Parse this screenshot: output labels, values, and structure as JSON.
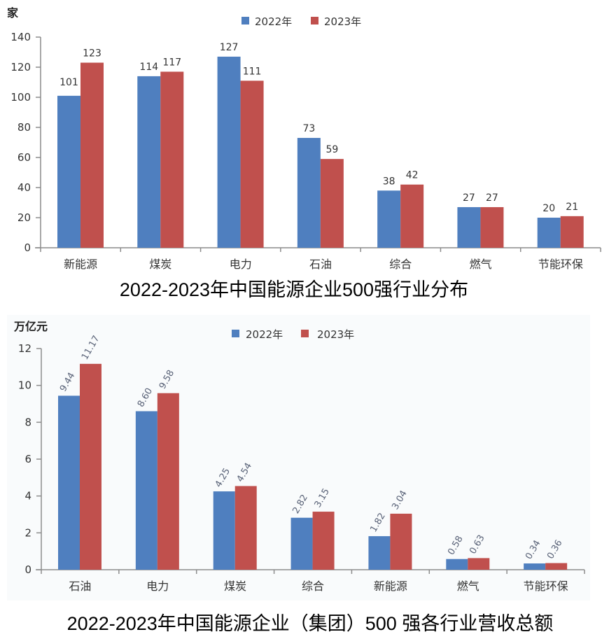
{
  "colors": {
    "series_2022": "#4f7fbf",
    "series_2023": "#c0504d",
    "axis": "#8c8c8c",
    "panel2_bg": "#f9fbfc"
  },
  "chart_data": [
    {
      "type": "bar",
      "title": "2022-2023年中国能源企业500强行业分布",
      "ylabel": "家",
      "xlabel": "",
      "ylim": [
        0,
        140
      ],
      "yticks": [
        0,
        20,
        40,
        60,
        80,
        100,
        120,
        140
      ],
      "ytick_labels": [
        "0",
        "20",
        "40",
        "60",
        "80",
        "100",
        "120",
        "140"
      ],
      "legend_position": "top-center",
      "grid": false,
      "categories": [
        "新能源",
        "煤炭",
        "电力",
        "石油",
        "综合",
        "燃气",
        "节能环保"
      ],
      "series": [
        {
          "name": "2022年",
          "values": [
            101,
            114,
            127,
            73,
            38,
            27,
            20
          ],
          "labels": [
            "101",
            "114",
            "127",
            "73",
            "38",
            "27",
            "20"
          ]
        },
        {
          "name": "2023年",
          "values": [
            123,
            117,
            111,
            59,
            42,
            27,
            21
          ],
          "labels": [
            "123",
            "117",
            "111",
            "59",
            "42",
            "27",
            "21"
          ]
        }
      ]
    },
    {
      "type": "bar",
      "title": "2022-2023年中国能源企业（集团）500 强各行业营收总额",
      "ylabel": "万亿元",
      "xlabel": "",
      "ylim": [
        0,
        12
      ],
      "yticks": [
        0,
        2,
        4,
        6,
        8,
        10,
        12
      ],
      "ytick_labels": [
        "0",
        "2",
        "4",
        "6",
        "8",
        "10",
        "12"
      ],
      "legend_position": "top-center",
      "grid": false,
      "categories": [
        "石油",
        "电力",
        "煤炭",
        "综合",
        "新能源",
        "燃气",
        "节能环保"
      ],
      "series": [
        {
          "name": "2022年",
          "values": [
            9.44,
            8.6,
            4.25,
            2.82,
            1.82,
            0.58,
            0.34
          ],
          "labels": [
            "9.44",
            "8.60",
            "4.25",
            "2.82",
            "1.82",
            "0.58",
            "0.34"
          ]
        },
        {
          "name": "2023年",
          "values": [
            11.17,
            9.58,
            4.54,
            3.15,
            3.04,
            0.63,
            0.36
          ],
          "labels": [
            "11.17",
            "9.58",
            "4.54",
            "3.15",
            "3.04",
            "0.63",
            "0.36"
          ]
        }
      ]
    }
  ]
}
